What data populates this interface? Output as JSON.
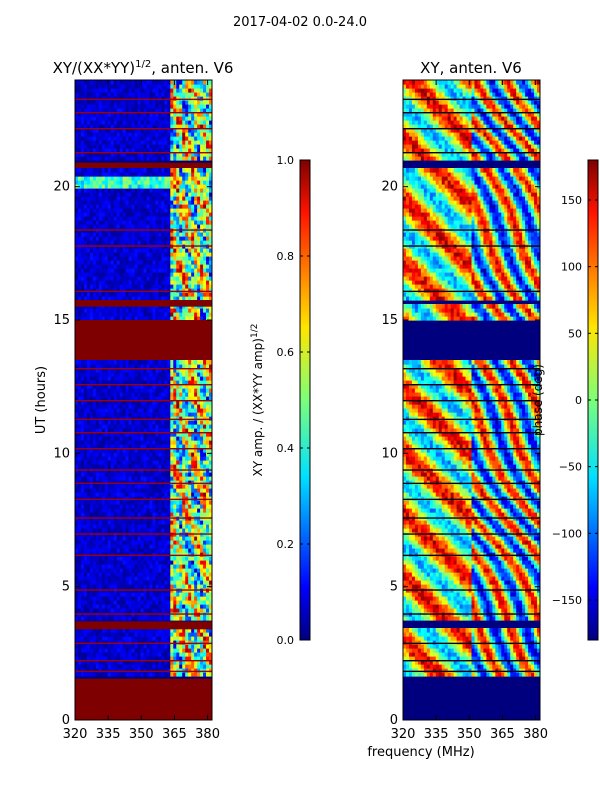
{
  "suptitle": "2017-04-02 0.0-24.0",
  "chart_data": [
    {
      "type": "heatmap",
      "title": "XY/(XX*YY)^{1/2}, anten. V6",
      "title_main": "XY/(XX*YY)",
      "title_exp": "1/2",
      "title_suffix": ", anten. V6",
      "xlabel": "",
      "ylabel": "UT (hours)",
      "xlim": [
        320,
        382
      ],
      "ylim": [
        0,
        24
      ],
      "xticks": [
        320,
        335,
        350,
        365,
        380
      ],
      "yticks": [
        0,
        5,
        10,
        15,
        20
      ],
      "colormap": "jet",
      "colorbar": {
        "label": "XY amp. / (XX*YY amp)^{1/2}",
        "label_main": "XY amp. / (XX*YY amp)",
        "label_exp": "1/2",
        "range": [
          0.0,
          1.0
        ],
        "ticks": [
          "0.0",
          "0.2",
          "0.4",
          "0.6",
          "0.8",
          "1.0"
        ]
      }
    },
    {
      "type": "heatmap",
      "title": "XY, anten. V6",
      "xlabel": "frequency (MHz)",
      "ylabel": "",
      "xlim": [
        320,
        382
      ],
      "ylim": [
        0,
        24
      ],
      "xticks": [
        320,
        335,
        350,
        365,
        380
      ],
      "yticks": [
        0,
        5,
        10,
        15,
        20
      ],
      "colormap": "jet",
      "colorbar": {
        "label": "phase (deg)",
        "range": [
          -180,
          180
        ],
        "ticks": [
          "−150",
          "−100",
          "−50",
          "0",
          "50",
          "100",
          "150"
        ]
      }
    }
  ]
}
